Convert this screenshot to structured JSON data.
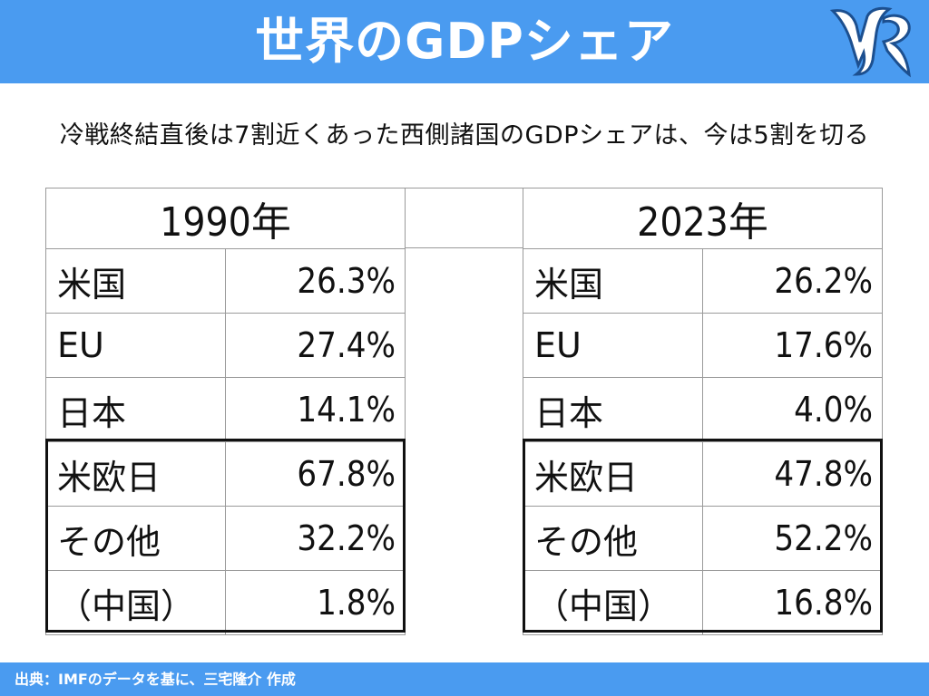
{
  "header": {
    "title": "世界のGDPシェア"
  },
  "subtitle": "冷戦終結直後は7割近くあった西側諸国のGDPシェアは、今は5割を切る",
  "tables": [
    {
      "year": "1990年",
      "rows": [
        {
          "name": "米国",
          "value": "26.3%"
        },
        {
          "name": "EU",
          "value": "27.4%"
        },
        {
          "name": "日本",
          "value": "14.1%"
        },
        {
          "name": "米欧日",
          "value": "67.8%"
        },
        {
          "name": "その他",
          "value": "32.2%"
        },
        {
          "name": "（中国）",
          "value": "1.8%"
        }
      ]
    },
    {
      "year": "2023年",
      "rows": [
        {
          "name": "米国",
          "value": "26.2%"
        },
        {
          "name": "EU",
          "value": "17.6%"
        },
        {
          "name": "日本",
          "value": "4.0%"
        },
        {
          "name": "米欧日",
          "value": "47.8%"
        },
        {
          "name": "その他",
          "value": "52.2%"
        },
        {
          "name": "（中国）",
          "value": "16.8%"
        }
      ]
    }
  ],
  "footer": {
    "source": "出典：IMFのデータを基に、三宅隆介 作成"
  },
  "colors": {
    "accent": "#4a9bf0",
    "text": "#111111"
  },
  "logo": {
    "icon": "logo-mark-icon"
  }
}
